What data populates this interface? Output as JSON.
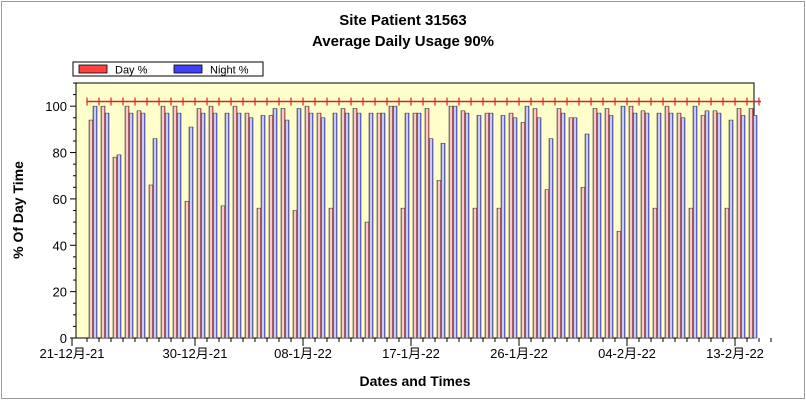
{
  "chart_data": {
    "type": "bar",
    "title": "Site Patient 31563",
    "subtitle": "Average Daily Usage 90%",
    "xlabel": "Dates and Times",
    "ylabel": "% Of Day Time",
    "ylim": [
      0,
      110
    ],
    "yticks": [
      0,
      20,
      40,
      60,
      80,
      100
    ],
    "x_start_date": "2021-12-21",
    "xtick_labels": [
      "21-12月-21",
      "30-12月-21",
      "08-1月-22",
      "17-1月-22",
      "26-1月-22",
      "04-2月-22",
      "13-2月-22"
    ],
    "threshold_line": 102,
    "legend_position": "top-left",
    "colors": {
      "day": "#d42020",
      "night": "#2020d0",
      "plot_bg": "#ffffcc",
      "threshold": "#e02020"
    },
    "series": [
      {
        "name": "Day %",
        "values": [
          94,
          100,
          78,
          100,
          98,
          66,
          100,
          100,
          59,
          99,
          100,
          57,
          100,
          97,
          56,
          96,
          99,
          55,
          100,
          97,
          56,
          99,
          99,
          50,
          97,
          100,
          56,
          97,
          99,
          68,
          100,
          98,
          56,
          97,
          56,
          97,
          93,
          99,
          64,
          99,
          95,
          65,
          99,
          99,
          46,
          100,
          98,
          56,
          100,
          97,
          56,
          96,
          98,
          56,
          99,
          99
        ]
      },
      {
        "name": "Night %",
        "values": [
          100,
          97,
          79,
          97,
          97,
          86,
          97,
          97,
          91,
          97,
          97,
          97,
          97,
          95,
          96,
          99,
          94,
          99,
          97,
          95,
          97,
          97,
          97,
          97,
          97,
          100,
          97,
          97,
          86,
          84,
          100,
          97,
          96,
          97,
          96,
          95,
          100,
          95,
          86,
          97,
          95,
          88,
          97,
          96,
          100,
          97,
          97,
          97,
          97,
          95,
          100,
          98,
          97,
          94,
          96,
          96
        ]
      }
    ]
  }
}
